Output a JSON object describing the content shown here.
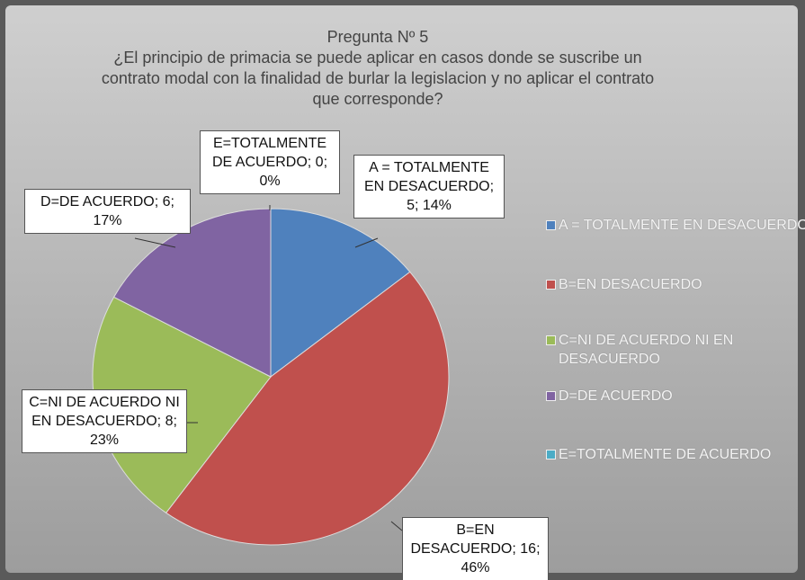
{
  "chart_data": {
    "type": "pie",
    "title": "Pregunta Nº 5",
    "subtitle": "¿El principio de primacia se puede aplicar en casos donde se suscribe un contrato modal con la finalidad de burlar la legislacion y no aplicar el contrato que corresponde?",
    "categories": [
      "A = TOTALMENTE EN DESACUERDO",
      "B=EN DESACUERDO",
      "C=NI DE ACUERDO NI EN DESACUERDO",
      "D=DE ACUERDO",
      "E=TOTALMENTE DE ACUERDO"
    ],
    "values": [
      5,
      16,
      8,
      6,
      0
    ],
    "value_labels": [
      "A = TOTALMENTE EN DESACUERDO; 5; 14%",
      "B=EN DESACUERDO; 16; 46%",
      "C=NI DE ACUERDO NI EN DESACUERDO; 8; 23%",
      "D=DE ACUERDO; 6; 17%",
      "E=TOTALMENTE DE ACUERDO; 0; 0%"
    ],
    "colors": [
      "#4f81bd",
      "#c0504d",
      "#9bbb59",
      "#8064a2",
      "#4bacc6"
    ],
    "legend": "right"
  }
}
